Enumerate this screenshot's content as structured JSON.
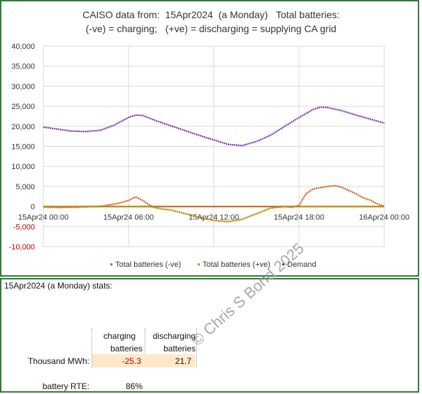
{
  "chart_data": {
    "type": "line",
    "title": "CAISO data from:  15Apr2024  (a Monday)   Total batteries:",
    "subtitle": "(-ve) = charging;   (+ve) = discharging = supplying CA grid",
    "ylim": [
      -10000,
      40000
    ],
    "yticks": [
      "40,000",
      "35,000",
      "30,000",
      "25,000",
      "20,000",
      "15,000",
      "10,000",
      "5,000",
      "0",
      "-5,000",
      "-10,000"
    ],
    "ytick_values": [
      40000,
      35000,
      30000,
      25000,
      20000,
      15000,
      10000,
      5000,
      0,
      -5000,
      -10000
    ],
    "xlim": [
      0,
      24
    ],
    "xticks": [
      "15Apr24 00:00",
      "15Apr24 06:00",
      "15Apr24 12:00",
      "15Apr24 18:00",
      "16Apr24 00:00"
    ],
    "xtick_values": [
      0,
      6,
      12,
      18,
      24
    ],
    "grid": true,
    "legend_position": "bottom",
    "series": [
      {
        "name": "Total batteries (-ve)",
        "color": "#c55a11",
        "x": [
          0,
          1,
          2,
          3,
          4,
          5,
          5.5,
          6,
          6.5,
          7,
          7.5,
          8,
          8.5,
          9,
          10,
          11,
          12,
          13,
          14,
          15,
          16,
          17,
          17.5,
          18,
          18.5,
          19,
          20,
          20.5,
          21,
          22,
          22.5,
          23,
          23.5,
          24
        ],
        "values": [
          -150,
          -250,
          -200,
          -100,
          50,
          600,
          1000,
          1500,
          2400,
          1500,
          300,
          -400,
          -700,
          -900,
          -1800,
          -2700,
          -3500,
          -3800,
          -3200,
          -1800,
          -400,
          0,
          -200,
          300,
          3200,
          4400,
          5000,
          5200,
          4800,
          3200,
          2200,
          1600,
          700,
          0
        ]
      },
      {
        "name": "Total batteries (+ve)",
        "color": "#bf9000",
        "x": [
          0,
          6,
          6.5,
          7,
          7.5,
          8,
          9,
          10,
          11,
          12,
          13,
          14,
          15,
          16,
          17,
          18,
          24
        ],
        "values": [
          0,
          0,
          0,
          0,
          0,
          -400,
          -900,
          -1800,
          -2700,
          -3500,
          -3800,
          -3200,
          -1800,
          -400,
          0,
          0,
          0
        ]
      },
      {
        "name": "Demand",
        "color": "#7030a0",
        "x": [
          0,
          1,
          2,
          3,
          4,
          5,
          6,
          6.5,
          7,
          8,
          9,
          10,
          11,
          12,
          13,
          14,
          15,
          16,
          17,
          18,
          19,
          19.5,
          20,
          21,
          22,
          23,
          24
        ],
        "values": [
          19800,
          19300,
          18800,
          18700,
          19000,
          20300,
          22200,
          22800,
          22700,
          21300,
          20100,
          18900,
          17700,
          16600,
          15500,
          15200,
          16200,
          17800,
          20000,
          22200,
          24200,
          24800,
          24700,
          23900,
          22800,
          21800,
          20800
        ]
      }
    ]
  },
  "stats": {
    "heading": "15Apr2024  (a Monday) stats:",
    "col1_line1": "charging",
    "col1_line2": "batteries",
    "col2_line1": "discharging",
    "col2_line2": "batteries",
    "row_label": "Thousand MWh:",
    "charging_value": "-25.3",
    "discharging_value": "21.7",
    "rte_label": "battery RTE:",
    "rte_value": "86%",
    "charging_value_color": "#c00000"
  },
  "watermark": "© Chris S Bond  2025"
}
